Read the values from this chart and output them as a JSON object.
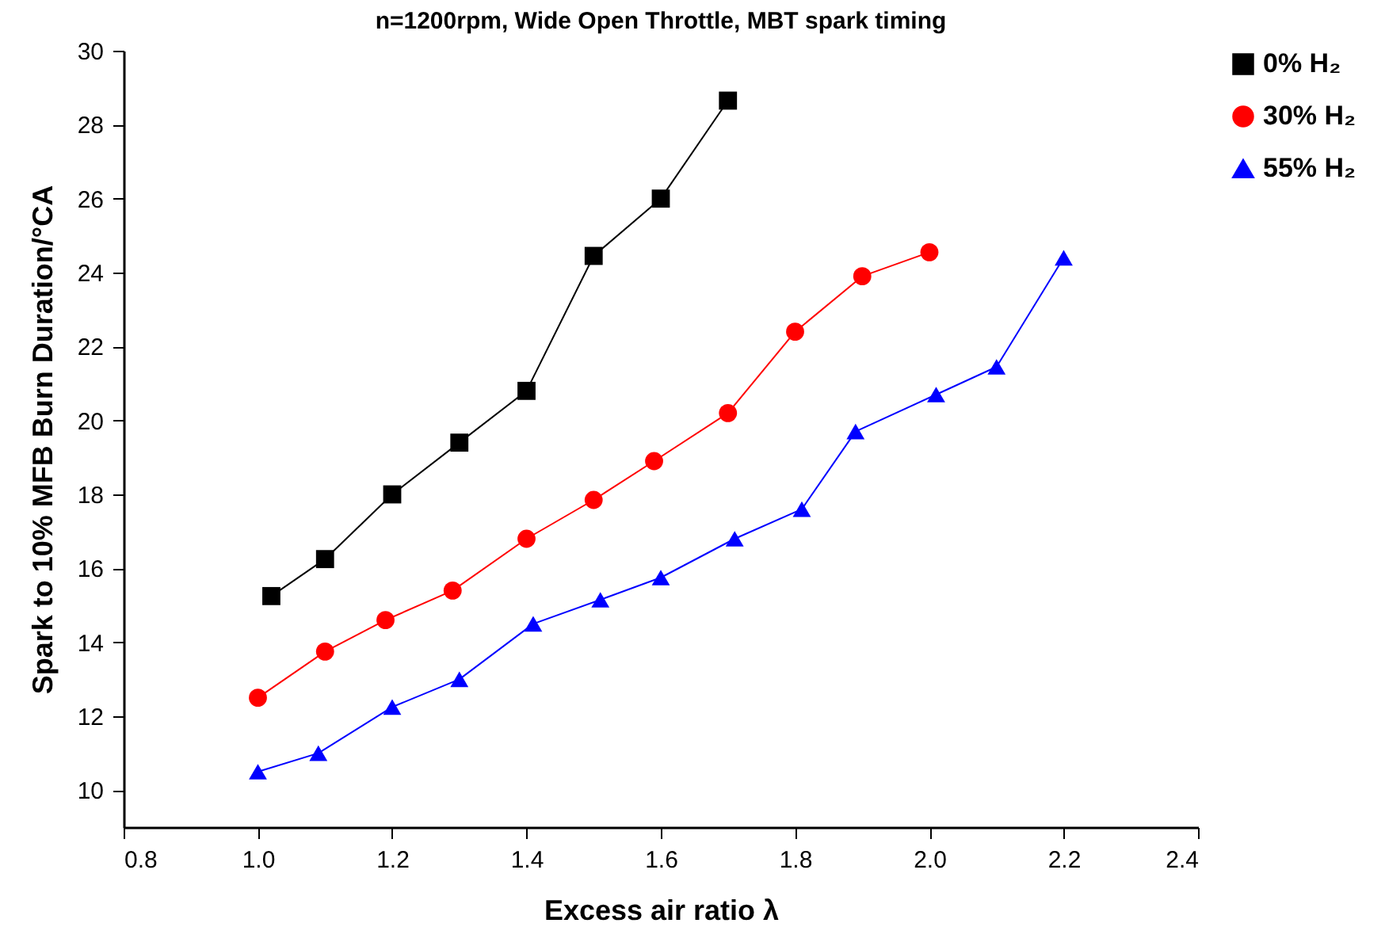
{
  "chart_data": {
    "type": "line",
    "title": "n=1200rpm, Wide Open Throttle, MBT spark timing",
    "xlabel": "Excess air ratio λ",
    "ylabel": "Spark to 10% MFB Burn Duration/°CA",
    "xlim": [
      0.8,
      2.4
    ],
    "xticks": [
      0.8,
      {
        "value": 1.0,
        "label": "1.0"
      },
      1.2,
      1.4,
      1.6,
      1.8,
      {
        "value": 2.0,
        "label": "2.0"
      },
      2.2,
      2.4
    ],
    "ylim": [
      9,
      30
    ],
    "yticks": [
      10,
      12,
      14,
      16,
      18,
      20,
      22,
      24,
      26,
      28,
      30
    ],
    "grid": false,
    "legend": "top right",
    "line_style": "solid",
    "series": [
      {
        "name": "0%  H₂",
        "color": "#000000",
        "marker": "square",
        "x": [
          1.02,
          1.1,
          1.2,
          1.3,
          1.4,
          1.5,
          1.6,
          1.7
        ],
        "values": [
          15.25,
          16.25,
          18.0,
          19.4,
          20.8,
          24.45,
          26.0,
          28.65
        ]
      },
      {
        "name": "30% H₂",
        "color": "#ff0000",
        "marker": "circle",
        "x": [
          1.0,
          1.1,
          1.19,
          1.29,
          1.4,
          1.5,
          1.59,
          1.7,
          1.8,
          1.9,
          2.0
        ],
        "values": [
          12.5,
          13.75,
          14.6,
          15.4,
          16.8,
          17.85,
          18.9,
          20.2,
          22.4,
          23.9,
          24.55
        ]
      },
      {
        "name": "55% H₂",
        "color": "#0000ff",
        "marker": "triangle",
        "x": [
          1.0,
          1.09,
          1.2,
          1.3,
          1.41,
          1.51,
          1.6,
          1.71,
          1.81,
          1.89,
          2.01,
          2.1,
          2.2
        ],
        "values": [
          10.5,
          11.0,
          12.25,
          13.0,
          14.5,
          15.15,
          15.75,
          16.8,
          17.6,
          19.7,
          20.7,
          21.45,
          24.4
        ]
      }
    ]
  }
}
